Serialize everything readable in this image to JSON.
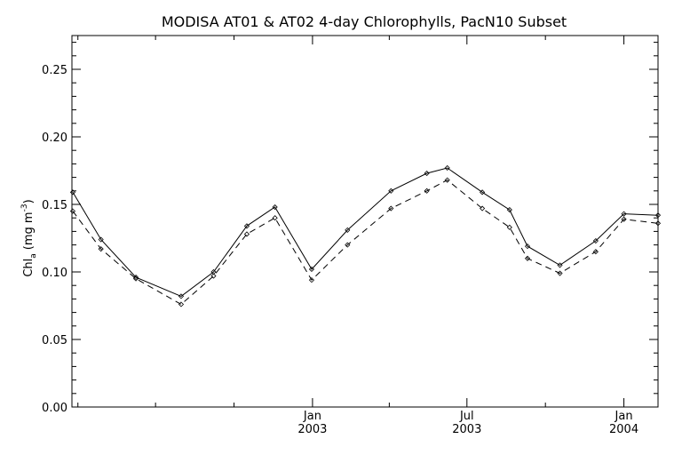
{
  "chart_data": {
    "type": "line",
    "title": "MODISA AT01 & AT02 4-day Chlorophylls, PacN10 Subset",
    "ylabel_main": "Chl",
    "ylabel_sub": "a",
    "ylabel_unit": "(mg m",
    "ylabel_sup": "-3",
    "ylabel_close": ")",
    "ylim": [
      0.0,
      0.275
    ],
    "yticks": [
      "0.00",
      "0.05",
      "0.10",
      "0.15",
      "0.20",
      "0.25"
    ],
    "ytick_values": [
      0.0,
      0.05,
      0.1,
      0.15,
      0.2,
      0.25
    ],
    "xlim": [
      "2002-03-25",
      "2004-02-10"
    ],
    "xtick_labels": [
      {
        "month": "Jan",
        "year": "2003",
        "date": "2003-01-01"
      },
      {
        "month": "Jul",
        "year": "2003",
        "date": "2003-07-01"
      },
      {
        "month": "Jan",
        "year": "2004",
        "date": "2004-01-01"
      }
    ],
    "xminor_ticks": [
      "2002-04-01",
      "2002-07-01",
      "2002-10-01",
      "2003-04-01",
      "2003-10-01"
    ],
    "grid": false,
    "series": [
      {
        "style": "solid",
        "x": [
          "2002-03-26",
          "2002-04-28",
          "2002-06-08",
          "2002-07-31",
          "2002-09-07",
          "2002-10-16",
          "2002-11-18",
          "2002-12-31",
          "2003-02-11",
          "2003-04-03",
          "2003-05-15",
          "2003-06-08",
          "2003-07-19",
          "2003-08-20",
          "2003-09-10",
          "2003-10-18",
          "2003-11-29",
          "2004-01-01",
          "2004-02-10"
        ],
        "values": [
          0.159,
          0.124,
          0.096,
          0.082,
          0.1,
          0.134,
          0.148,
          0.102,
          0.131,
          0.16,
          0.173,
          0.177,
          0.159,
          0.146,
          0.119,
          0.105,
          0.123,
          0.143,
          0.142
        ]
      },
      {
        "style": "dashed",
        "x": [
          "2002-03-26",
          "2002-04-28",
          "2002-06-08",
          "2002-07-31",
          "2002-09-07",
          "2002-10-16",
          "2002-11-18",
          "2002-12-31",
          "2003-02-11",
          "2003-04-03",
          "2003-05-15",
          "2003-06-08",
          "2003-07-19",
          "2003-08-20",
          "2003-09-10",
          "2003-10-18",
          "2003-11-29",
          "2004-01-01",
          "2004-02-10"
        ],
        "values": [
          0.145,
          0.117,
          0.095,
          0.076,
          0.097,
          0.128,
          0.14,
          0.094,
          0.12,
          0.147,
          0.16,
          0.168,
          0.147,
          0.133,
          0.11,
          0.099,
          0.115,
          0.139,
          0.136
        ]
      }
    ]
  }
}
